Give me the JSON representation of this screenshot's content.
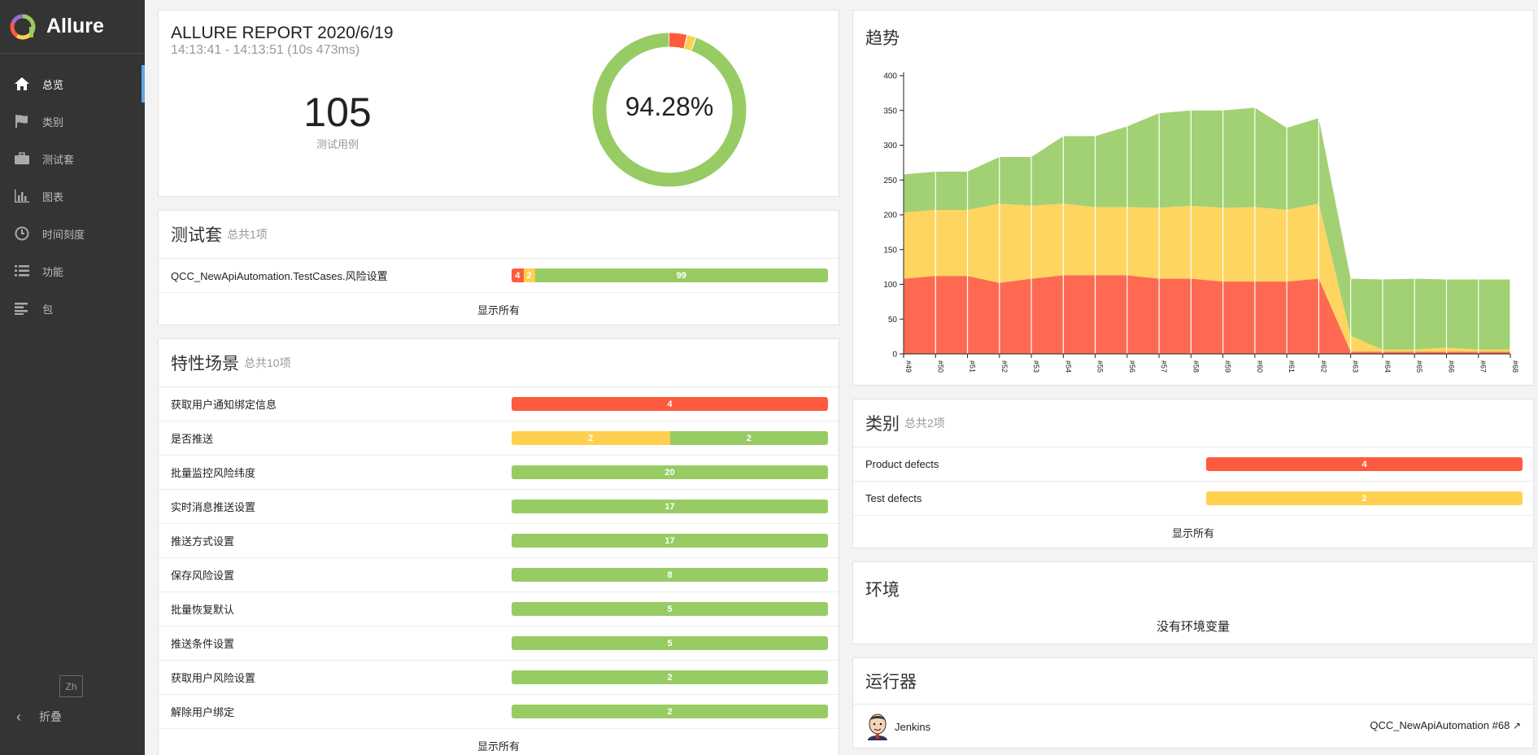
{
  "app": {
    "title": "Allure"
  },
  "sidebar": {
    "items": [
      {
        "label": "总览",
        "icon": "home-icon",
        "active": true
      },
      {
        "label": "类别",
        "icon": "flag-icon",
        "active": false
      },
      {
        "label": "测试套",
        "icon": "briefcase-icon",
        "active": false
      },
      {
        "label": "图表",
        "icon": "bar-chart-icon",
        "active": false
      },
      {
        "label": "时间刻度",
        "icon": "clock-icon",
        "active": false
      },
      {
        "label": "功能",
        "icon": "list-icon",
        "active": false
      },
      {
        "label": "包",
        "icon": "align-left-icon",
        "active": false
      }
    ],
    "lang": "Zh",
    "collapse_label": "折叠"
  },
  "summary": {
    "title": "ALLURE REPORT 2020/6/19",
    "time_range": "14:13:41 - 14:13:51 (10s 473ms)",
    "count": "105",
    "count_label": "测试用例",
    "percent": "94.28%",
    "status_counts": {
      "failed": 4,
      "broken": 2,
      "passed": 99
    }
  },
  "colors": {
    "failed": "#fd5a3e",
    "broken": "#ffd050",
    "passed": "#97cc64"
  },
  "suites": {
    "title": "测试套",
    "subtitle": "总共1项",
    "rows": [
      {
        "name": "QCC_NewApiAutomation.TestCases.风险设置",
        "failed": 4,
        "broken": 2,
        "passed": 99
      }
    ],
    "show_all": "显示所有"
  },
  "features": {
    "title": "特性场景",
    "subtitle": "总共10项",
    "rows": [
      {
        "name": "获取用户通知绑定信息",
        "failed": 4,
        "broken": 0,
        "passed": 0
      },
      {
        "name": "是否推送",
        "failed": 0,
        "broken": 2,
        "passed": 2
      },
      {
        "name": "批量监控风险纬度",
        "failed": 0,
        "broken": 0,
        "passed": 20
      },
      {
        "name": "实时消息推送设置",
        "failed": 0,
        "broken": 0,
        "passed": 17
      },
      {
        "name": "推送方式设置",
        "failed": 0,
        "broken": 0,
        "passed": 17
      },
      {
        "name": "保存风险设置",
        "failed": 0,
        "broken": 0,
        "passed": 8
      },
      {
        "name": "批量恢复默认",
        "failed": 0,
        "broken": 0,
        "passed": 5
      },
      {
        "name": "推送条件设置",
        "failed": 0,
        "broken": 0,
        "passed": 5
      },
      {
        "name": "获取用户风险设置",
        "failed": 0,
        "broken": 0,
        "passed": 2
      },
      {
        "name": "解除用户绑定",
        "failed": 0,
        "broken": 0,
        "passed": 2
      }
    ],
    "show_all": "显示所有"
  },
  "trend": {
    "title": "趋势"
  },
  "chart_data": {
    "type": "area",
    "x": [
      "#49",
      "#50",
      "#51",
      "#52",
      "#53",
      "#54",
      "#55",
      "#56",
      "#57",
      "#58",
      "#59",
      "#60",
      "#61",
      "#62",
      "#63",
      "#64",
      "#65",
      "#66",
      "#67",
      "#68"
    ],
    "series": [
      {
        "status": "failed",
        "values": [
          108,
          112,
          112,
          102,
          108,
          113,
          113,
          113,
          108,
          108,
          104,
          104,
          104,
          108,
          3,
          3,
          3,
          3,
          3,
          3
        ]
      },
      {
        "status": "broken",
        "values": [
          95,
          95,
          95,
          114,
          105,
          103,
          98,
          98,
          102,
          105,
          106,
          107,
          103,
          108,
          23,
          3,
          3,
          6,
          3,
          3
        ]
      },
      {
        "status": "passed",
        "values": [
          55,
          55,
          55,
          67,
          70,
          97,
          102,
          116,
          136,
          137,
          140,
          143,
          118,
          123,
          82,
          101,
          102,
          98,
          101,
          101
        ]
      }
    ],
    "ylim": [
      0,
      400
    ],
    "yticks": [
      0,
      50,
      100,
      150,
      200,
      250,
      300,
      350,
      400
    ]
  },
  "categories": {
    "title": "类别",
    "subtitle": "总共2项",
    "rows": [
      {
        "name": "Product defects",
        "failed": 4,
        "broken": 0,
        "passed": 0
      },
      {
        "name": "Test defects",
        "failed": 0,
        "broken": 2,
        "passed": 0
      }
    ],
    "show_all": "显示所有"
  },
  "environment": {
    "title": "环境",
    "empty": "没有环境变量"
  },
  "executors": {
    "title": "运行器",
    "name": "Jenkins",
    "build": "QCC_NewApiAutomation #68"
  }
}
